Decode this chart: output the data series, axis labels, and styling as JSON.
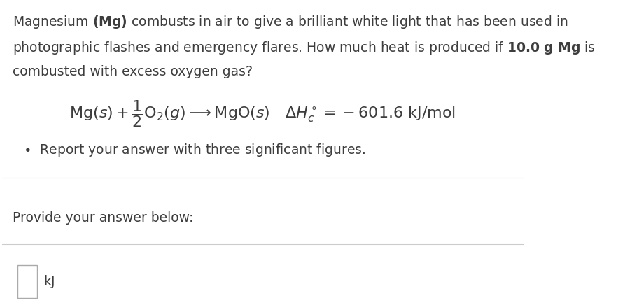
{
  "bg_color": "#ffffff",
  "text_color": "#3d3d3d",
  "border_color": "#cccccc",
  "line1": "Magnesium $\\mathbf{(Mg)}$ combusts in air to give a brilliant white light that has been used in",
  "line2": "photographic flashes and emergency flares. How much heat is produced if $\\mathbf{10.0\\ g\\ Mg}$ is",
  "line3": "combusted with excess oxygen gas?",
  "equation": "$\\mathrm{Mg}(s) + \\dfrac{1}{2}\\mathrm{O_2}(g) \\longrightarrow \\mathrm{MgO}(s) \\quad \\Delta H_c^\\circ = -601.6\\ \\mathrm{kJ/mol}$",
  "bullet_text": "Report your answer with three significant figures.",
  "provide_text": "Provide your answer below:",
  "unit_label": "kJ",
  "figsize": [
    9.0,
    4.36
  ],
  "dpi": 100,
  "fs_main": 13.5,
  "fs_eq": 16
}
